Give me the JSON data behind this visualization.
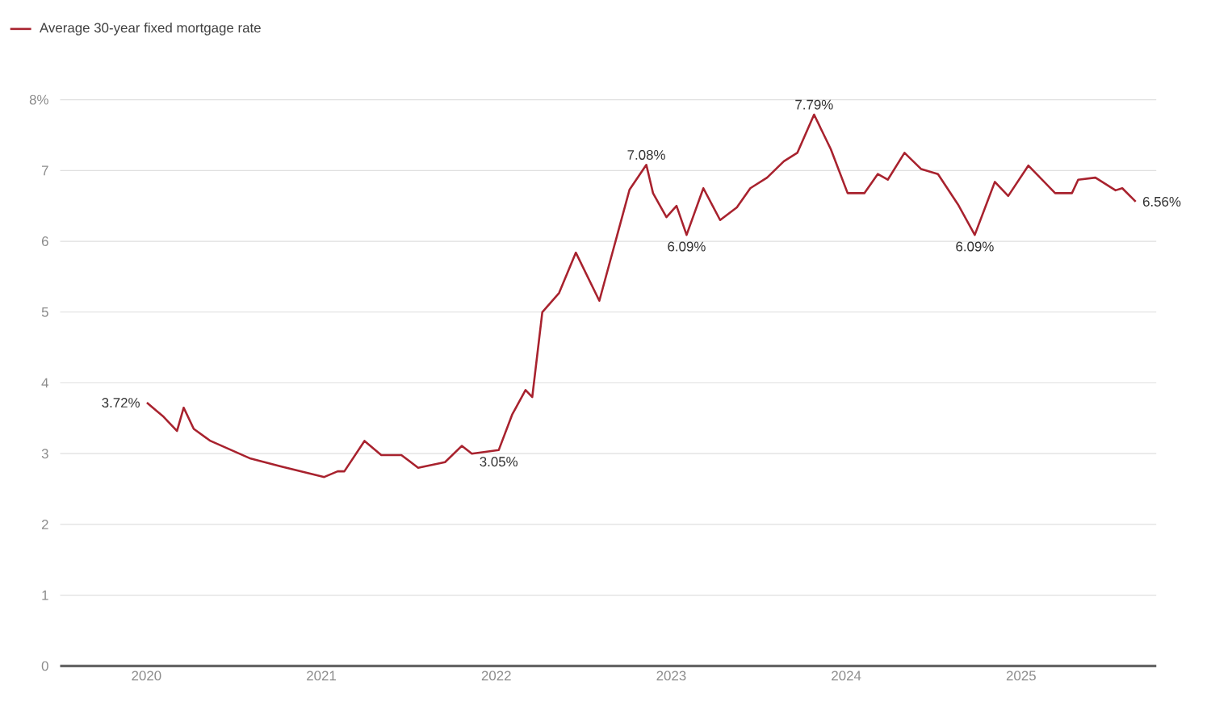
{
  "chart_data": {
    "type": "line",
    "legend": "top left",
    "grid": "y",
    "marker": "none",
    "line_style": "solid",
    "series": [
      {
        "name": "Average 30-year fixed mortgage rate",
        "color": "#a8222e",
        "x": [
          "2020-01-02",
          "2020-02-06",
          "2020-03-05",
          "2020-03-19",
          "2020-04-09",
          "2020-05-14",
          "2020-08-06",
          "2020-10-08",
          "2021-01-07",
          "2021-02-04",
          "2021-02-18",
          "2021-04-01",
          "2021-05-06",
          "2021-06-17",
          "2021-07-22",
          "2021-09-16",
          "2021-10-21",
          "2021-11-11",
          "2022-01-06",
          "2022-02-03",
          "2022-03-03",
          "2022-03-17",
          "2022-04-07",
          "2022-05-12",
          "2022-06-16",
          "2022-08-04",
          "2022-10-06",
          "2022-11-10",
          "2022-11-24",
          "2022-12-22",
          "2023-01-12",
          "2023-02-02",
          "2023-03-09",
          "2023-04-13",
          "2023-05-18",
          "2023-06-15",
          "2023-07-20",
          "2023-08-24",
          "2023-09-21",
          "2023-10-26",
          "2023-11-30",
          "2024-01-04",
          "2024-02-08",
          "2024-03-07",
          "2024-03-28",
          "2024-05-02",
          "2024-06-06",
          "2024-07-11",
          "2024-08-22",
          "2024-09-26",
          "2024-11-07",
          "2024-12-05",
          "2025-01-16",
          "2025-03-13",
          "2025-04-17",
          "2025-04-30",
          "2025-06-05",
          "2025-07-17",
          "2025-07-31",
          "2025-08-28"
        ],
        "values": [
          3.72,
          3.52,
          3.32,
          3.65,
          3.35,
          3.18,
          2.93,
          2.82,
          2.67,
          2.75,
          2.75,
          3.18,
          2.98,
          2.98,
          2.8,
          2.88,
          3.11,
          3.0,
          3.05,
          3.55,
          3.9,
          3.8,
          5.0,
          5.27,
          5.84,
          5.16,
          6.73,
          7.08,
          6.68,
          6.34,
          6.5,
          6.09,
          6.75,
          6.3,
          6.48,
          6.75,
          6.9,
          7.13,
          7.25,
          7.79,
          7.3,
          6.68,
          6.68,
          6.95,
          6.87,
          7.25,
          7.02,
          6.95,
          6.52,
          6.09,
          6.84,
          6.64,
          7.07,
          6.68,
          6.68,
          6.87,
          6.9,
          6.72,
          6.75,
          6.56
        ]
      }
    ],
    "xlim": [
      "2019-07-05",
      "2025-10-10"
    ],
    "xticks": [
      "2020",
      "2021",
      "2022",
      "2023",
      "2024",
      "2025"
    ],
    "ylim": [
      0,
      8
    ],
    "yticks": [
      0,
      1,
      2,
      3,
      4,
      5,
      6,
      7,
      {
        "value": 8,
        "label": "8%"
      }
    ],
    "annotations": [
      {
        "text": "3.72%",
        "x": "2020-01-02",
        "y": 3.72
      },
      {
        "text": "3.05%",
        "x": "2022-01-06",
        "y": 3.05
      },
      {
        "text": "7.08%",
        "x": "2022-11-10",
        "y": 7.08
      },
      {
        "text": "6.09%",
        "x": "2023-02-02",
        "y": 6.09
      },
      {
        "text": "7.79%",
        "x": "2023-10-26",
        "y": 7.79
      },
      {
        "text": "6.09%",
        "x": "2024-09-26",
        "y": 6.09
      },
      {
        "text": "6.56%",
        "x": "2025-08-28",
        "y": 6.56
      }
    ]
  }
}
